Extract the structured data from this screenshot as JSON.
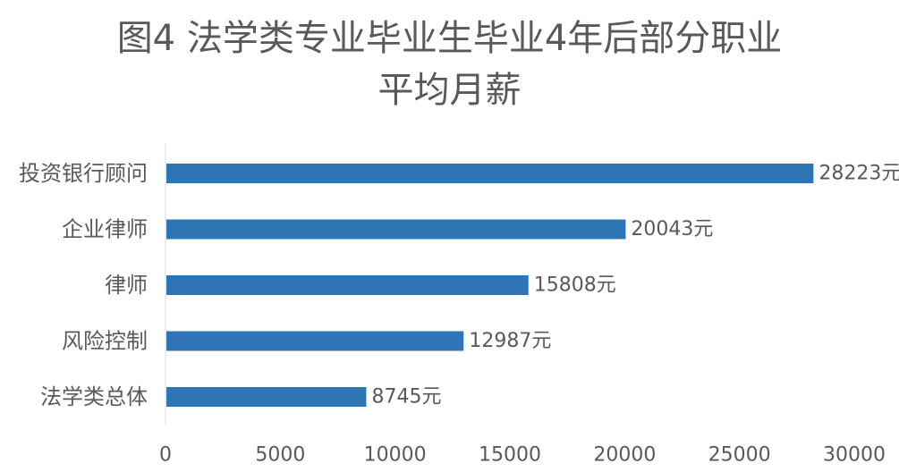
{
  "chart_data": {
    "type": "bar",
    "orientation": "horizontal",
    "title_lines": [
      "图4 法学类专业毕业生毕业4年后部分职业",
      "平均月薪"
    ],
    "categories": [
      "投资银行顾问",
      "企业律师",
      "律师",
      "风险控制",
      "法学类总体"
    ],
    "values": [
      28223,
      20043,
      15808,
      12987,
      8745
    ],
    "value_labels": [
      "28223元",
      "20043元",
      "15808元",
      "12987元",
      "8745元"
    ],
    "x_ticks": [
      "0",
      "5000",
      "10000",
      "15000",
      "20000",
      "25000",
      "30000"
    ],
    "xlim": [
      0,
      30000
    ],
    "bar_color": "#2e75b6",
    "grid": false,
    "legend": false
  }
}
